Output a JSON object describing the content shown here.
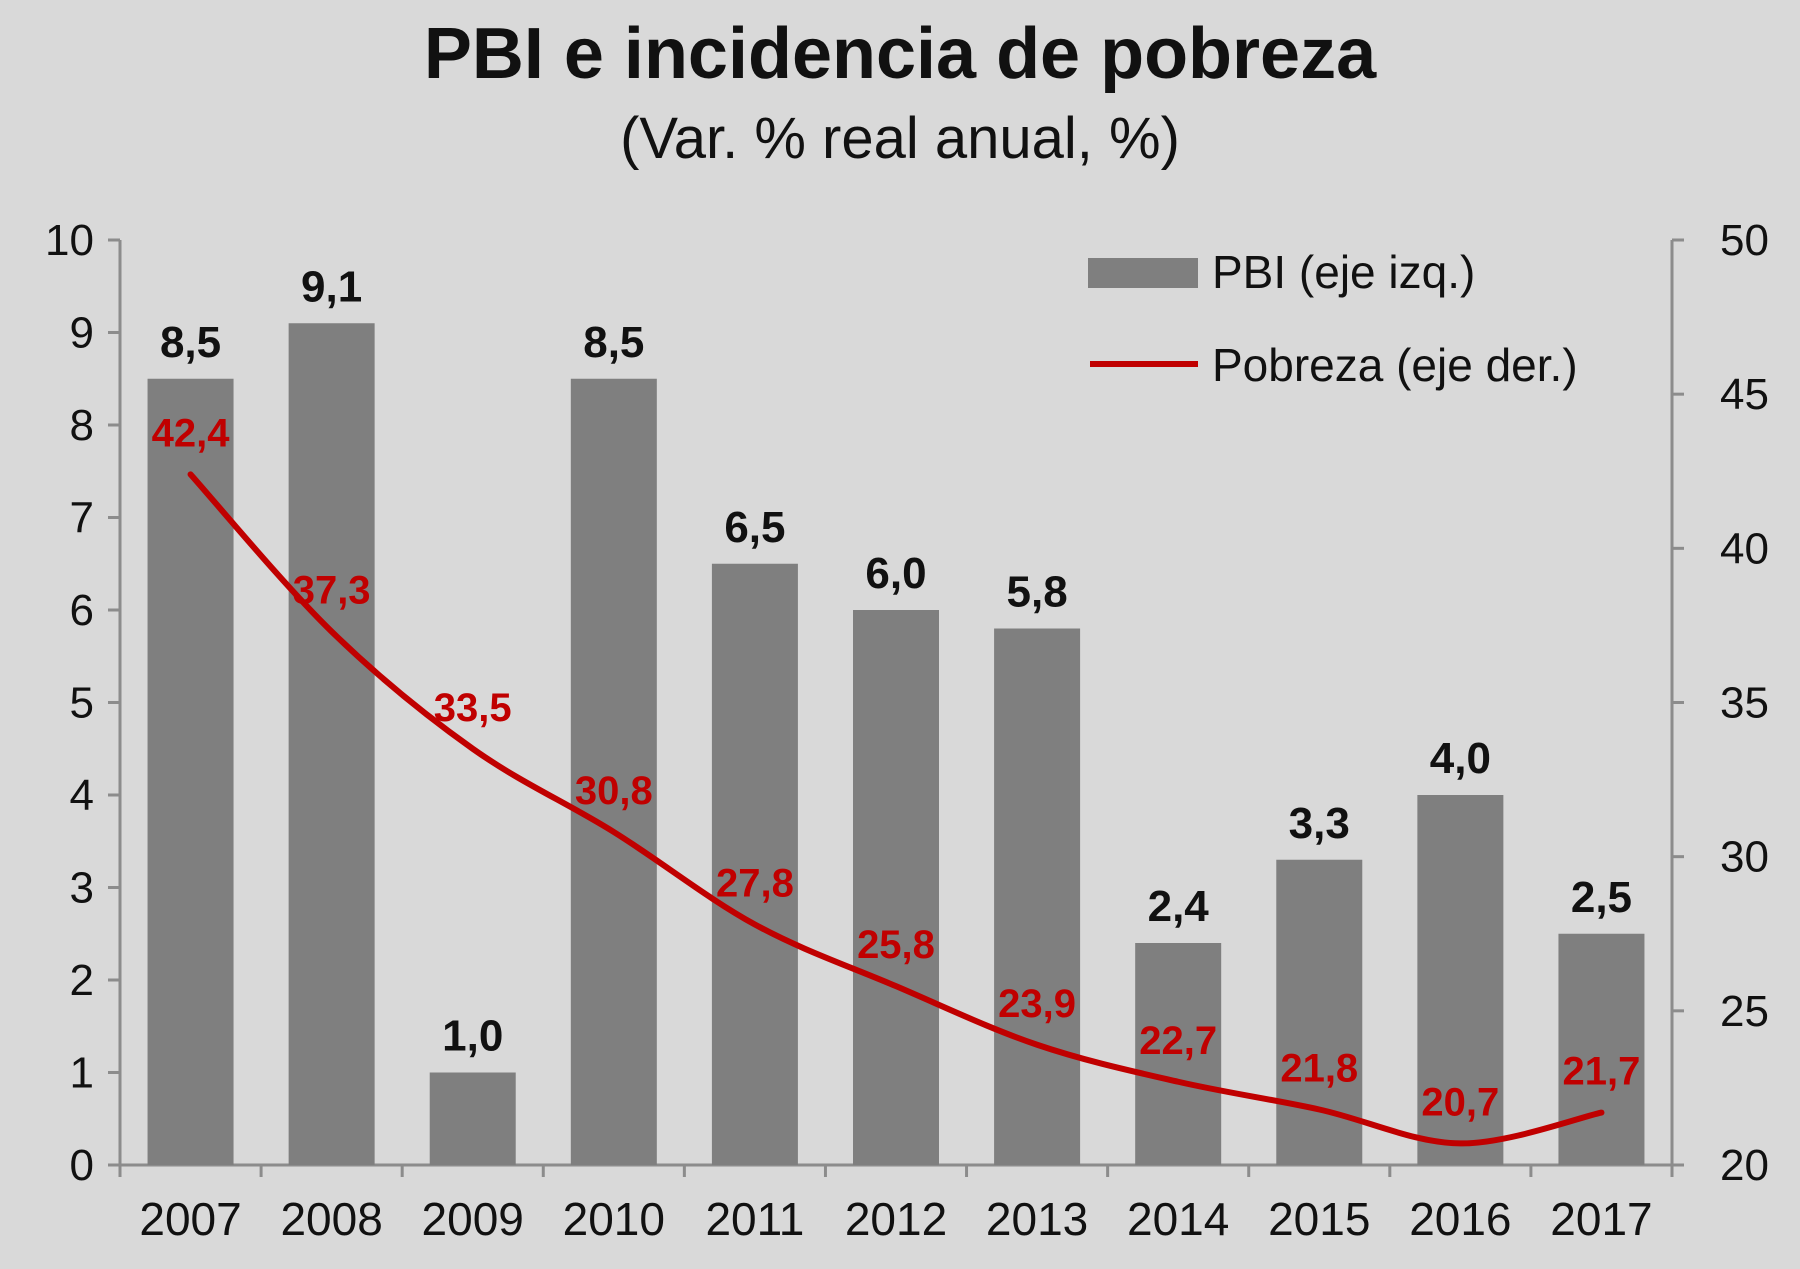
{
  "chart_data": {
    "type": "bar",
    "title": "PBI e incidencia de pobreza",
    "subtitle": "(Var. % real anual, %)",
    "categories": [
      "2007",
      "2008",
      "2009",
      "2010",
      "2011",
      "2012",
      "2013",
      "2014",
      "2015",
      "2016",
      "2017"
    ],
    "series": [
      {
        "name": "PBI (eje izq.)",
        "type": "bar",
        "axis": "left",
        "color": "#7f7f7f",
        "values": [
          8.5,
          9.1,
          1.0,
          8.5,
          6.5,
          6.0,
          5.8,
          2.4,
          3.3,
          4.0,
          2.5
        ],
        "labels": [
          "8,5",
          "9,1",
          "1,0",
          "8,5",
          "6,5",
          "6,0",
          "5,8",
          "2,4",
          "3,3",
          "4,0",
          "2,5"
        ]
      },
      {
        "name": "Pobreza (eje der.)",
        "type": "line",
        "axis": "right",
        "color": "#c00000",
        "values": [
          42.4,
          37.3,
          33.5,
          30.8,
          27.8,
          25.8,
          23.9,
          22.7,
          21.8,
          20.7,
          21.7
        ],
        "labels": [
          "42,4",
          "37,3",
          "33,5",
          "30,8",
          "27,8",
          "25,8",
          "23,9",
          "22,7",
          "21,8",
          "20,7",
          "21,7"
        ]
      }
    ],
    "left_axis": {
      "ylim": [
        0,
        10
      ],
      "ticks": [
        "0",
        "1",
        "2",
        "3",
        "4",
        "5",
        "6",
        "7",
        "8",
        "9",
        "10"
      ]
    },
    "right_axis": {
      "ylim": [
        20,
        50
      ],
      "ticks": [
        "20",
        "25",
        "30",
        "35",
        "40",
        "45",
        "50"
      ]
    },
    "legend_position": "top-right",
    "grid": false
  }
}
